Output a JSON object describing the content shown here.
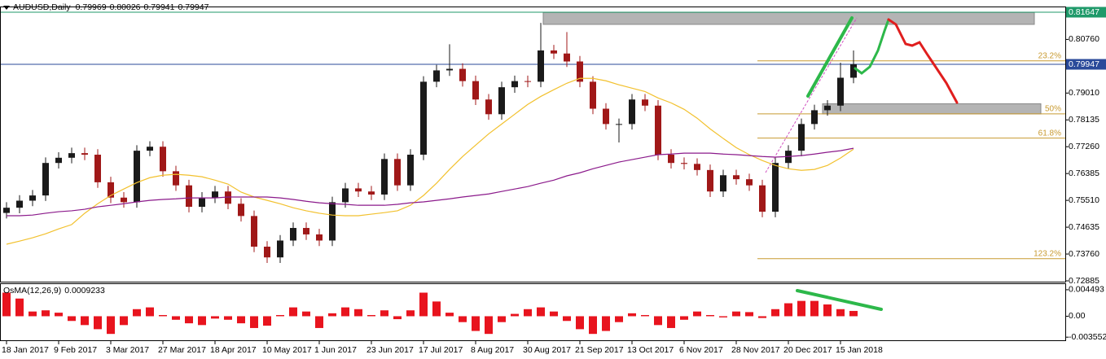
{
  "chart_data": [
    {
      "type": "candlestick",
      "title": "AUDUSD,Daily",
      "quote": [
        0.79969,
        0.80026,
        0.79941,
        0.79947
      ],
      "categories": [
        "18 Jan 2017",
        null,
        null,
        null,
        "9 Feb 2017",
        null,
        null,
        null,
        "3 Mar 2017",
        null,
        null,
        null,
        "27 Mar 2017",
        null,
        null,
        null,
        "18 Apr 2017",
        null,
        null,
        null,
        "10 May 2017",
        null,
        null,
        null,
        "1 Jun 2017",
        null,
        null,
        null,
        "23 Jun 2017",
        null,
        null,
        null,
        "17 Jul 2017",
        null,
        null,
        null,
        "8 Aug 2017",
        null,
        null,
        null,
        "30 Aug 2017",
        null,
        null,
        null,
        "21 Sep 2017",
        null,
        null,
        null,
        "13 Oct 2017",
        null,
        null,
        null,
        "6 Nov 2017",
        null,
        null,
        null,
        "28 Nov 2017",
        null,
        null,
        null,
        "20 Dec 2017",
        null,
        null,
        null,
        "15 Jan 2018",
        null
      ],
      "open": [
        0.751,
        0.7527,
        0.755,
        0.7567,
        0.7673,
        0.769,
        0.7705,
        0.77,
        0.761,
        0.756,
        0.7545,
        0.7713,
        0.7726,
        0.7646,
        0.76,
        0.753,
        0.756,
        0.758,
        0.754,
        0.75,
        0.74,
        0.7365,
        0.742,
        0.7461,
        0.744,
        0.742,
        0.7545,
        0.759,
        0.758,
        0.757,
        0.7686,
        0.76,
        0.77,
        0.7938,
        0.7975,
        0.798,
        0.794,
        0.788,
        0.7832,
        0.792,
        0.794,
        0.7938,
        0.804,
        0.803,
        0.8004,
        0.7938,
        0.785,
        0.78,
        0.78,
        0.788,
        0.786,
        0.77,
        0.7673,
        0.767,
        0.765,
        0.758,
        0.7633,
        0.762,
        0.76,
        0.7514,
        0.7673,
        0.7713,
        0.78,
        0.7845,
        0.786,
        0.7951
      ],
      "high": [
        0.7545,
        0.7568,
        0.7585,
        0.7691,
        0.7708,
        0.7723,
        0.7723,
        0.7718,
        0.7628,
        0.7578,
        0.7731,
        0.7744,
        0.7744,
        0.7664,
        0.7618,
        0.7578,
        0.7598,
        0.7598,
        0.7558,
        0.7518,
        0.7418,
        0.7438,
        0.7479,
        0.7479,
        0.7458,
        0.7563,
        0.7608,
        0.7608,
        0.7598,
        0.7704,
        0.7704,
        0.7718,
        0.7956,
        0.7993,
        0.806,
        0.7998,
        0.7958,
        0.7898,
        0.7938,
        0.7958,
        0.7958,
        0.813,
        0.8058,
        0.81,
        0.8022,
        0.7956,
        0.7868,
        0.7818,
        0.7898,
        0.7898,
        0.7878,
        0.7718,
        0.7691,
        0.7688,
        0.7668,
        0.7651,
        0.7651,
        0.7638,
        0.7618,
        0.7691,
        0.7731,
        0.7818,
        0.7863,
        0.7878,
        0.8,
        0.804
      ],
      "low": [
        0.7492,
        0.7509,
        0.7532,
        0.7549,
        0.7655,
        0.7672,
        0.7682,
        0.7592,
        0.7542,
        0.7527,
        0.7527,
        0.7695,
        0.7628,
        0.7582,
        0.7512,
        0.7512,
        0.7542,
        0.7522,
        0.7482,
        0.7382,
        0.7347,
        0.7347,
        0.7402,
        0.7422,
        0.7402,
        0.7402,
        0.7527,
        0.7562,
        0.7552,
        0.7552,
        0.7582,
        0.7582,
        0.7682,
        0.792,
        0.7957,
        0.7922,
        0.7862,
        0.7814,
        0.7814,
        0.7902,
        0.792,
        0.792,
        0.8012,
        0.7986,
        0.792,
        0.7832,
        0.7782,
        0.774,
        0.7782,
        0.7842,
        0.7682,
        0.7655,
        0.7652,
        0.7632,
        0.7562,
        0.7562,
        0.7602,
        0.7582,
        0.7496,
        0.7496,
        0.7655,
        0.7695,
        0.7782,
        0.7827,
        0.7842,
        0.7933
      ],
      "close": [
        0.7527,
        0.755,
        0.7567,
        0.7673,
        0.769,
        0.7705,
        0.77,
        0.761,
        0.756,
        0.7545,
        0.7713,
        0.7726,
        0.7646,
        0.76,
        0.753,
        0.756,
        0.758,
        0.754,
        0.75,
        0.74,
        0.7365,
        0.742,
        0.7461,
        0.744,
        0.742,
        0.7545,
        0.759,
        0.758,
        0.757,
        0.7686,
        0.76,
        0.77,
        0.7938,
        0.7975,
        0.798,
        0.794,
        0.788,
        0.7832,
        0.792,
        0.794,
        0.7938,
        0.804,
        0.803,
        0.8004,
        0.7938,
        0.785,
        0.78,
        0.78,
        0.788,
        0.786,
        0.77,
        0.7673,
        0.767,
        0.765,
        0.758,
        0.7633,
        0.762,
        0.76,
        0.7514,
        0.7673,
        0.7713,
        0.78,
        0.7845,
        0.786,
        0.7951,
        0.7995
      ],
      "up_color": "#1a1a1a",
      "down_color": "#a01818",
      "series": [
        {
          "color": "#f2c12e",
          "values": [
            0.7408,
            0.7418,
            0.7429,
            0.7442,
            0.7458,
            0.7472,
            0.7509,
            0.754,
            0.7567,
            0.7588,
            0.7609,
            0.7625,
            0.7633,
            0.7636,
            0.7633,
            0.7628,
            0.7617,
            0.7604,
            0.7578,
            0.7562,
            0.7551,
            0.754,
            0.7527,
            0.7517,
            0.7509,
            0.7503,
            0.7501,
            0.7501,
            0.7506,
            0.7511,
            0.7517,
            0.7535,
            0.7567,
            0.7607,
            0.7652,
            0.7694,
            0.7731,
            0.7768,
            0.78,
            0.7832,
            0.7864,
            0.789,
            0.7912,
            0.7933,
            0.7949,
            0.7949,
            0.7941,
            0.7928,
            0.7917,
            0.7906,
            0.7885,
            0.7869,
            0.7848,
            0.7819,
            0.7784,
            0.7753,
            0.7723,
            0.77,
            0.7681,
            0.7665,
            0.7654,
            0.7649,
            0.7652,
            0.7665,
            0.7689,
            0.7718
          ]
        },
        {
          "color": "#8b1a8b",
          "values": [
            0.7501,
            0.7501,
            0.7503,
            0.7509,
            0.7514,
            0.7517,
            0.7522,
            0.753,
            0.7535,
            0.754,
            0.7546,
            0.7551,
            0.7554,
            0.7556,
            0.7559,
            0.7559,
            0.7559,
            0.7562,
            0.7562,
            0.7562,
            0.7562,
            0.7559,
            0.7554,
            0.7548,
            0.7543,
            0.754,
            0.7538,
            0.7535,
            0.7535,
            0.7535,
            0.7538,
            0.7543,
            0.7546,
            0.7551,
            0.7556,
            0.7562,
            0.7567,
            0.7572,
            0.758,
            0.7588,
            0.7596,
            0.7607,
            0.7617,
            0.7631,
            0.7641,
            0.7654,
            0.7665,
            0.7676,
            0.7684,
            0.7692,
            0.77,
            0.7702,
            0.7705,
            0.7705,
            0.7705,
            0.7702,
            0.77,
            0.7697,
            0.7694,
            0.7692,
            0.7694,
            0.7697,
            0.7702,
            0.7708,
            0.7713,
            0.7721
          ]
        }
      ],
      "ylim": [
        0.72885,
        0.81647
      ],
      "yticks": [
        {
          "value": 0.8076,
          "label": "0.80760"
        },
        {
          "value": 0.7901,
          "label": "0.79010"
        },
        0.78135,
        {
          "value": 0.7726,
          "label": "0.77260"
        },
        0.76385,
        {
          "value": 0.7551,
          "label": "0.75510"
        },
        0.74635,
        {
          "value": 0.7376,
          "label": "0.73760"
        },
        0.72885
      ],
      "hlines": [
        {
          "value": 0.81647,
          "color": "#1f9a6a"
        },
        {
          "value": 0.79947,
          "color": "#2a4a9a"
        }
      ],
      "levels": [
        {
          "label": "23.2%",
          "value": 0.8006
        },
        {
          "label": "50%",
          "value": 0.7833
        },
        {
          "label": "61.8%",
          "value": 0.7754
        },
        {
          "label": "123.2%",
          "value": 0.7361
        }
      ],
      "level_color": "#c89a30",
      "zones": [
        {
          "from": 0.8125,
          "to": 0.8164
        },
        {
          "from": 0.7833,
          "to": 0.7866
        }
      ],
      "zone_color": "#b4b4b4"
    },
    {
      "type": "bar",
      "title": "OsMA(12,26,9)",
      "current": 0.0009233,
      "values": [
        0.004,
        0.003,
        0.0008,
        0.001,
        0.0006,
        -0.0008,
        -0.0015,
        -0.0022,
        -0.003,
        -0.0015,
        0.0012,
        0.0015,
        0.0002,
        -0.0006,
        -0.0012,
        -0.0015,
        -0.0004,
        -0.0006,
        -0.0012,
        -0.002,
        -0.0016,
        0.0002,
        0.0015,
        0.0008,
        -0.002,
        0.0005,
        0.0015,
        0.0012,
        0.0002,
        0.001,
        -0.0005,
        0.001,
        0.004,
        0.0025,
        0.0006,
        -0.001,
        -0.0025,
        -0.003,
        -0.001,
        0.0004,
        0.0012,
        0.0015,
        0.0008,
        -0.0008,
        -0.0022,
        -0.003,
        -0.0025,
        -0.001,
        0.0005,
        0.0002,
        -0.0015,
        -0.002,
        -0.0006,
        0.0008,
        0.0002,
        -0.0002,
        0.0008,
        0.0007,
        -0.0003,
        0.0012,
        0.0022,
        0.0026,
        0.0026,
        0.002,
        0.0012,
        0.0009
      ],
      "color": "#e8141e",
      "ylim": [
        -0.00408,
        0.00545
      ],
      "yticks": [
        0.004493,
        {
          "value": 0,
          "label": "0.00"
        },
        -0.003552
      ]
    }
  ]
}
